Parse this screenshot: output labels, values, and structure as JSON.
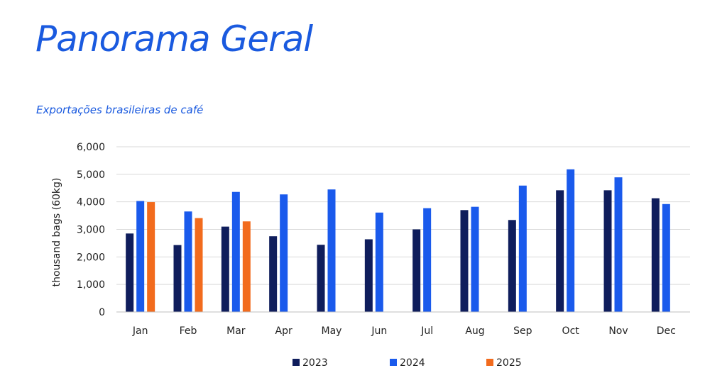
{
  "page": {
    "title": "Panorama Geral"
  },
  "chart_data": {
    "type": "bar",
    "title": "Exportações brasileiras de café",
    "ylabel": "thousand bags (60kg)",
    "xlabel": "",
    "ylim": [
      0,
      6000
    ],
    "yticks": [
      0,
      1000,
      2000,
      3000,
      4000,
      5000,
      6000
    ],
    "ytick_labels": [
      "0",
      "1,000",
      "2,000",
      "3,000",
      "4,000",
      "5,000",
      "6,000"
    ],
    "grid": true,
    "legend": "bottom-center",
    "categories": [
      "Jan",
      "Feb",
      "Mar",
      "Apr",
      "May",
      "Jun",
      "Jul",
      "Aug",
      "Sep",
      "Oct",
      "Nov",
      "Dec"
    ],
    "series": [
      {
        "name": "2023",
        "color": "#0f1d5c",
        "values": [
          2850,
          2430,
          3100,
          2750,
          2440,
          2640,
          3000,
          3700,
          3340,
          4420,
          4420,
          4130
        ]
      },
      {
        "name": "2024",
        "color": "#1a5aec",
        "values": [
          4030,
          3650,
          4360,
          4270,
          4450,
          3610,
          3770,
          3820,
          4590,
          5180,
          4890,
          3920
        ]
      },
      {
        "name": "2025",
        "color": "#f26b1d",
        "values": [
          3990,
          3410,
          3290,
          null,
          null,
          null,
          null,
          null,
          null,
          null,
          null,
          null
        ]
      }
    ]
  }
}
